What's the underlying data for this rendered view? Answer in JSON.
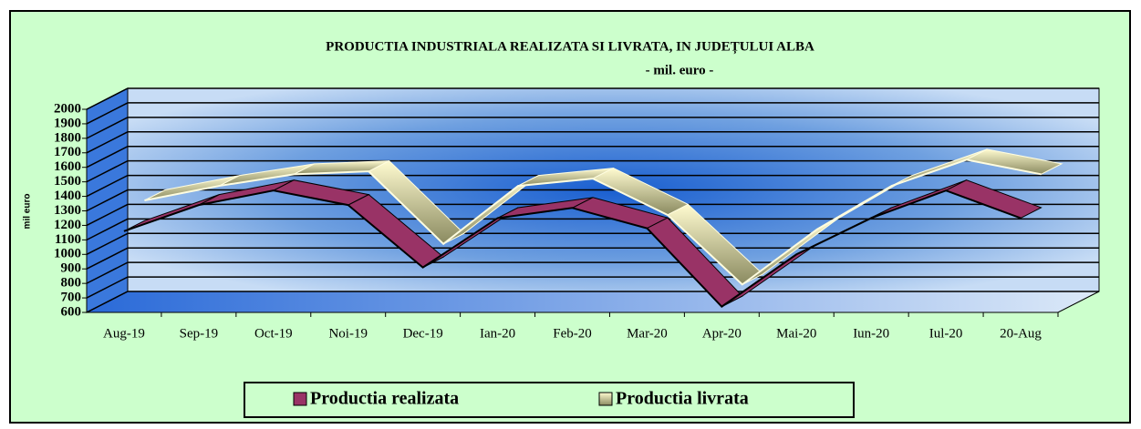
{
  "chart_data": {
    "type": "line3d",
    "title": "PRODUCTIA INDUSTRIALA REALIZATA SI LIVRATA, IN JUDEȚULUI ALBA",
    "subtitle": "- mil. euro -",
    "y_label": "mil euro",
    "categories": [
      "Aug-19",
      "Sep-19",
      "Oct-19",
      "Noi-19",
      "Dec-19",
      "Ian-20",
      "Feb-20",
      "Mar-20",
      "Apr-20",
      "Mai-20",
      "Iun-20",
      "Iul-20",
      "20-Aug"
    ],
    "series": [
      {
        "name": "Productia realizata",
        "color": "#993366",
        "values": [
          1160,
          1340,
          1440,
          1340,
          910,
          1250,
          1320,
          1180,
          640,
          1000,
          1250,
          1440,
          1250
        ]
      },
      {
        "name": "Productia livrata",
        "color": "#ffffcc",
        "values": [
          1300,
          1400,
          1480,
          1500,
          1000,
          1400,
          1450,
          1200,
          720,
          1100,
          1400,
          1580,
          1480
        ]
      }
    ],
    "ylim": [
      600,
      2000
    ],
    "yticks": [
      600,
      700,
      800,
      900,
      1000,
      1100,
      1200,
      1300,
      1400,
      1500,
      1600,
      1700,
      1800,
      1900,
      2000
    ],
    "grid": true
  }
}
